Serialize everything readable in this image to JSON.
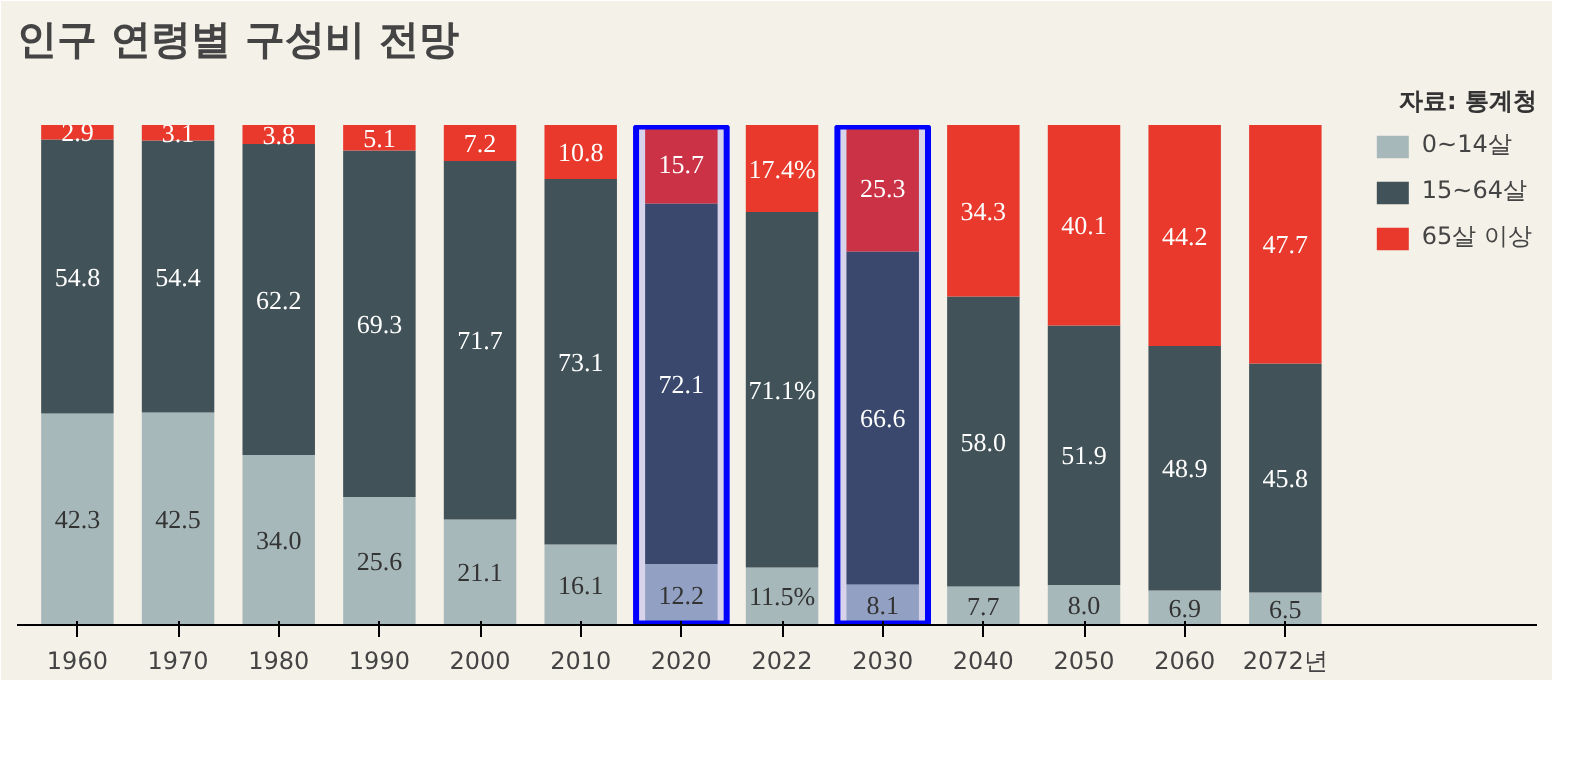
{
  "chart_data": {
    "type": "bar",
    "title": "인구 연령별 구성비 전망",
    "annotations": [
      "자료: 통계청"
    ],
    "stacked": true,
    "legend": "top right",
    "grid": false,
    "categories": [
      "1960",
      "1970",
      "1980",
      "1990",
      "2000",
      "2010",
      "2020",
      "2022",
      "2030",
      "2040",
      "2050",
      "2060",
      "2072년"
    ],
    "ylim": [
      0,
      100
    ],
    "tick_labels": "x",
    "series": [
      {
        "name": "0~14살",
        "color": "#a7b8bb",
        "values": [
          42.3,
          42.5,
          34.0,
          25.6,
          21.1,
          16.1,
          12.2,
          11.5,
          8.1,
          7.7,
          8.0,
          6.9,
          6.5
        ],
        "value_labels": [
          "42.3",
          "42.5",
          "34.0",
          "25.6",
          "21.1",
          "16.1",
          "12.2",
          "11.5%",
          "8.1",
          "7.7",
          "8.0",
          "6.9",
          "6.5"
        ]
      },
      {
        "name": "15~64살",
        "color": "#415258",
        "values": [
          54.8,
          54.4,
          62.2,
          69.3,
          71.7,
          73.1,
          72.1,
          71.1,
          66.6,
          58.0,
          51.9,
          48.9,
          45.8
        ],
        "value_labels": [
          "54.8",
          "54.4",
          "62.2",
          "69.3",
          "71.7",
          "73.1",
          "72.1",
          "71.1%",
          "66.6",
          "58.0",
          "51.9",
          "48.9",
          "45.8"
        ]
      },
      {
        "name": "65살 이상",
        "color": "#e8392c",
        "values": [
          2.9,
          3.1,
          3.8,
          5.1,
          7.2,
          10.8,
          15.7,
          17.4,
          25.3,
          34.3,
          40.1,
          44.2,
          47.7
        ],
        "value_labels": [
          "2.9",
          "3.1",
          "3.8",
          "5.1",
          "7.2",
          "10.8",
          "15.7",
          "17.4%",
          "25.3",
          "34.3",
          "40.1",
          "44.2",
          "47.7"
        ]
      }
    ],
    "bands": [
      {
        "axis": "x",
        "from": "2020",
        "to": "2020",
        "color": "#0000ff"
      },
      {
        "axis": "x",
        "from": "2030",
        "to": "2030",
        "color": "#0000ff"
      }
    ]
  }
}
